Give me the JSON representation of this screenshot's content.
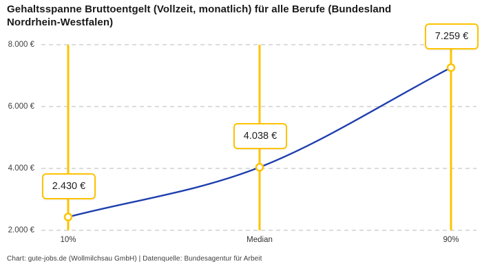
{
  "header": {
    "title": "Gehaltsspanne Bruttoentgelt (Vollzeit, monatlich) für alle Berufe (Bundesland Nordrhein-Westfalen)"
  },
  "footer": {
    "text": "Chart: gute-jobs.de (Wollmilchsau GmbH) | Datenquelle: Bundesagentur für Arbeit"
  },
  "colors": {
    "accent_gold": "#fdc300",
    "curve_blue": "#1e3fae",
    "grid_gray": "#c7c7c7",
    "marker_fill": "#ffffff"
  },
  "chart_data": {
    "type": "line",
    "title": "Gehaltsspanne Bruttoentgelt (Vollzeit, monatlich) für alle Berufe (Bundesland Nordrhein-Westfalen)",
    "categories": [
      "10%",
      "Median",
      "90%"
    ],
    "values": [
      2430,
      4038,
      7259
    ],
    "value_labels": [
      "2.430 €",
      "4.038 €",
      "7.259 €"
    ],
    "xlabel": "",
    "ylabel": "",
    "ylim": [
      2000,
      8000
    ],
    "y_ticks": [
      {
        "value": 8000,
        "label": "8.000 €"
      },
      {
        "value": 6000,
        "label": "6.000 €"
      },
      {
        "value": 4000,
        "label": "4.000 €"
      },
      {
        "value": 2000,
        "label": "2.000 €"
      }
    ],
    "grid": "horizontal dashed gridlines, no axis lines",
    "legend": "none",
    "annotations": "each data point marked with open circle on a vertical gold percentile line and a boxed value label above it"
  }
}
